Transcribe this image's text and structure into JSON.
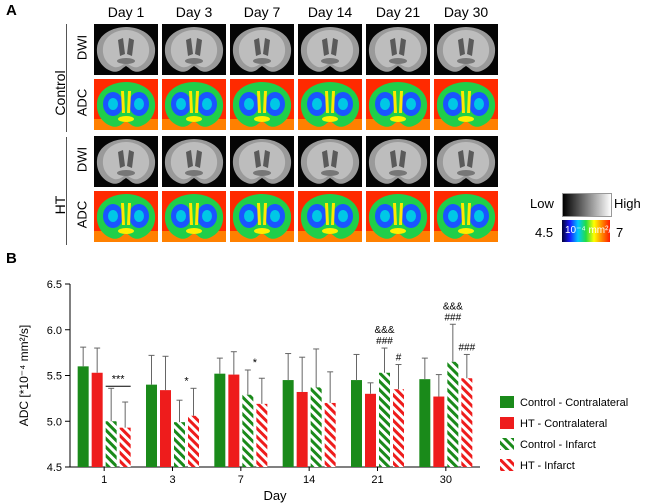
{
  "figure": {
    "panel_a_label": "A",
    "panel_b_label": "B",
    "days": [
      "Day 1",
      "Day 3",
      "Day 7",
      "Day 14",
      "Day 21",
      "Day 30"
    ],
    "groups": [
      {
        "name": "Control",
        "rows": [
          "DWI",
          "ADC"
        ]
      },
      {
        "name": "HT",
        "rows": [
          "DWI",
          "ADC"
        ]
      }
    ],
    "colorbars": {
      "dwi_low": "Low",
      "dwi_high": "High",
      "adc_min": "4.5",
      "adc_unit": "10⁻⁴ mm²/s",
      "adc_max": "7"
    },
    "colors": {
      "control": "#1a8a1a",
      "ht": "#ee1c1c"
    }
  },
  "chart_data": {
    "type": "bar",
    "ylabel": "ADC [*10⁻⁴ mm²/s]",
    "xlabel": "Day",
    "ylim": [
      4.5,
      6.5
    ],
    "yticks": [
      "4.5",
      "5.0",
      "5.5",
      "6.0",
      "6.5"
    ],
    "categories": [
      "1",
      "3",
      "7",
      "14",
      "21",
      "30"
    ],
    "series": [
      {
        "name": "Control - Contralateral",
        "pattern": "solid",
        "color": "#1a8a1a",
        "values": [
          5.6,
          5.4,
          5.52,
          5.45,
          5.45,
          5.46
        ],
        "errors": [
          0.21,
          0.32,
          0.17,
          0.29,
          0.28,
          0.23
        ]
      },
      {
        "name": "HT - Contralateral",
        "pattern": "solid",
        "color": "#ee1c1c",
        "values": [
          5.53,
          5.34,
          5.51,
          5.32,
          5.3,
          5.27
        ],
        "errors": [
          0.27,
          0.37,
          0.25,
          0.38,
          0.12,
          0.24
        ]
      },
      {
        "name": "Control - Infarct",
        "pattern": "hatch",
        "color": "#1a8a1a",
        "values": [
          5.0,
          4.99,
          5.29,
          5.37,
          5.53,
          5.65
        ],
        "errors": [
          0.36,
          0.24,
          0.27,
          0.42,
          0.27,
          0.41
        ]
      },
      {
        "name": "HT - Infarct",
        "pattern": "hatch",
        "color": "#ee1c1c",
        "values": [
          4.93,
          5.06,
          5.19,
          5.2,
          5.35,
          5.47
        ],
        "errors": [
          0.28,
          0.3,
          0.28,
          0.34,
          0.27,
          0.26
        ]
      }
    ],
    "annotations": [
      {
        "category_index": 0,
        "text": "***",
        "line": true
      },
      {
        "category_index": 1,
        "text": "*",
        "line": false
      },
      {
        "category_index": 2,
        "text": "*",
        "line": false
      },
      {
        "category_index": 4,
        "series_index": 2,
        "lines": [
          "&&&",
          "###"
        ]
      },
      {
        "category_index": 4,
        "series_index": 3,
        "lines": [
          "#"
        ]
      },
      {
        "category_index": 5,
        "series_index": 2,
        "lines": [
          "&&&",
          "###"
        ]
      },
      {
        "category_index": 5,
        "series_index": 3,
        "lines": [
          "###"
        ]
      }
    ]
  }
}
